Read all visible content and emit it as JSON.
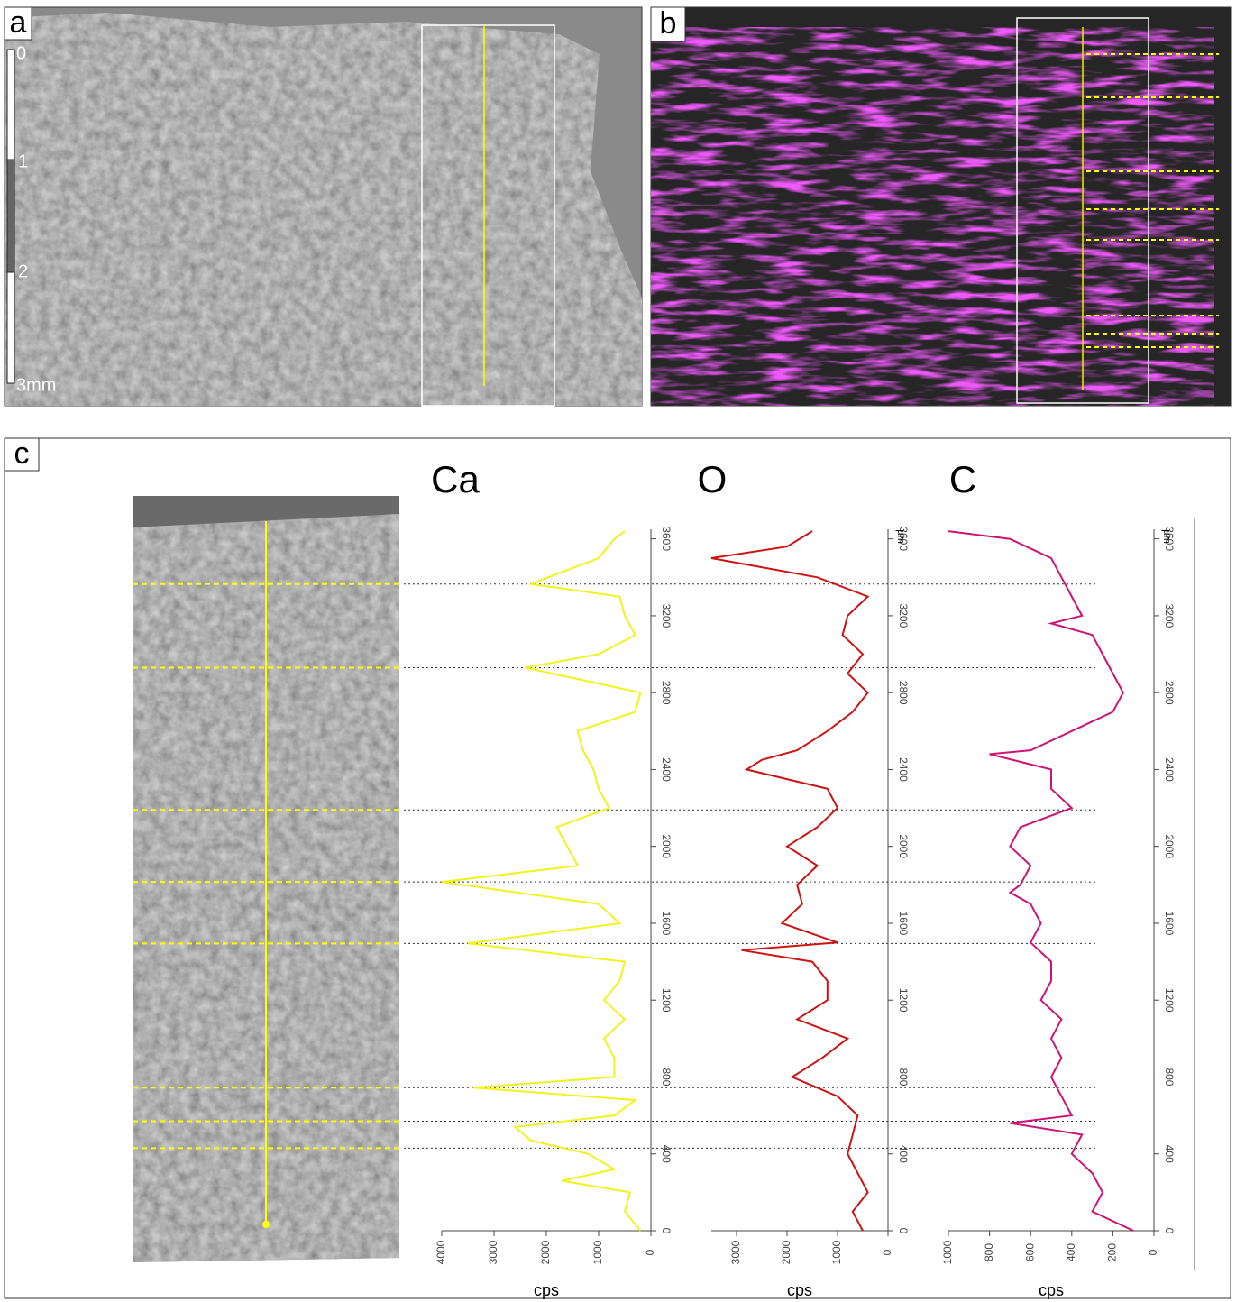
{
  "panels": {
    "a": {
      "label": "a",
      "scale_labels": [
        "0",
        "1",
        "2",
        "3mm"
      ]
    },
    "b": {
      "label": "b"
    },
    "c": {
      "label": "c"
    }
  },
  "markers": [
    430,
    570,
    745,
    1495,
    1815,
    2190,
    2930,
    3365
  ],
  "chart_data": [
    {
      "type": "line",
      "title": "Ca",
      "y_label": "cps",
      "color": "#f2f21e",
      "xlim": [
        0,
        3650
      ],
      "xticks": [
        0,
        400,
        800,
        1200,
        1600,
        2000,
        2400,
        2800,
        3200,
        3600
      ],
      "ylim": [
        0,
        4000
      ],
      "yticks": [
        0,
        1000,
        2000,
        3000,
        4000
      ],
      "x": [
        0,
        100,
        200,
        260,
        320,
        400,
        470,
        540,
        600,
        680,
        745,
        800,
        900,
        1000,
        1100,
        1200,
        1300,
        1400,
        1495,
        1600,
        1700,
        1815,
        1900,
        2000,
        2100,
        2200,
        2300,
        2400,
        2500,
        2600,
        2700,
        2800,
        2930,
        3000,
        3100,
        3200,
        3300,
        3365,
        3500,
        3600,
        3640
      ],
      "values": [
        200,
        500,
        400,
        1700,
        700,
        1200,
        2300,
        2600,
        700,
        300,
        3400,
        700,
        700,
        900,
        500,
        900,
        600,
        500,
        3500,
        600,
        1000,
        4000,
        1400,
        1600,
        1800,
        800,
        1000,
        1100,
        1300,
        1400,
        300,
        200,
        2400,
        1000,
        300,
        500,
        600,
        2300,
        1000,
        700,
        500
      ]
    },
    {
      "type": "line",
      "title": "O",
      "y_label": "cps",
      "x_label": "µm",
      "color": "#cc1414",
      "xlim": [
        0,
        3650
      ],
      "xticks": [
        0,
        400,
        800,
        1200,
        1600,
        2000,
        2400,
        2800,
        3200,
        3600
      ],
      "ylim": [
        0,
        3500
      ],
      "yticks": [
        0,
        1000,
        2000,
        3000
      ],
      "x": [
        0,
        100,
        200,
        300,
        400,
        500,
        600,
        700,
        800,
        900,
        1000,
        1100,
        1200,
        1300,
        1400,
        1460,
        1500,
        1600,
        1700,
        1800,
        1900,
        2000,
        2100,
        2200,
        2300,
        2400,
        2450,
        2500,
        2600,
        2700,
        2800,
        2900,
        3000,
        3100,
        3200,
        3300,
        3400,
        3500,
        3560,
        3640
      ],
      "values": [
        500,
        700,
        400,
        600,
        800,
        700,
        600,
        1000,
        1900,
        1300,
        800,
        1800,
        1200,
        1200,
        1500,
        2900,
        1000,
        2100,
        1700,
        1800,
        1400,
        2000,
        1400,
        1000,
        1200,
        2800,
        2500,
        1800,
        1200,
        700,
        400,
        800,
        500,
        900,
        800,
        400,
        1400,
        3500,
        2000,
        1500
      ]
    },
    {
      "type": "line",
      "title": "C",
      "y_label": "cps",
      "x_label": "µm",
      "color": "#cc1477",
      "xlim": [
        0,
        3650
      ],
      "xticks": [
        0,
        400,
        800,
        1200,
        1600,
        2000,
        2400,
        2800,
        3200,
        3600
      ],
      "ylim": [
        0,
        1000
      ],
      "yticks": [
        0,
        200,
        400,
        600,
        800,
        1000
      ],
      "x": [
        0,
        100,
        200,
        300,
        400,
        500,
        560,
        600,
        700,
        800,
        900,
        1000,
        1100,
        1200,
        1300,
        1400,
        1500,
        1600,
        1700,
        1760,
        1800,
        1900,
        2000,
        2100,
        2200,
        2300,
        2400,
        2480,
        2500,
        2600,
        2700,
        2800,
        2900,
        3000,
        3100,
        3160,
        3200,
        3300,
        3400,
        3500,
        3600,
        3640
      ],
      "values": [
        100,
        300,
        250,
        300,
        400,
        350,
        700,
        400,
        450,
        500,
        450,
        500,
        450,
        550,
        500,
        500,
        600,
        550,
        600,
        700,
        650,
        600,
        700,
        650,
        400,
        500,
        500,
        800,
        600,
        400,
        200,
        150,
        200,
        250,
        300,
        500,
        350,
        400,
        450,
        500,
        700,
        1000
      ]
    }
  ]
}
